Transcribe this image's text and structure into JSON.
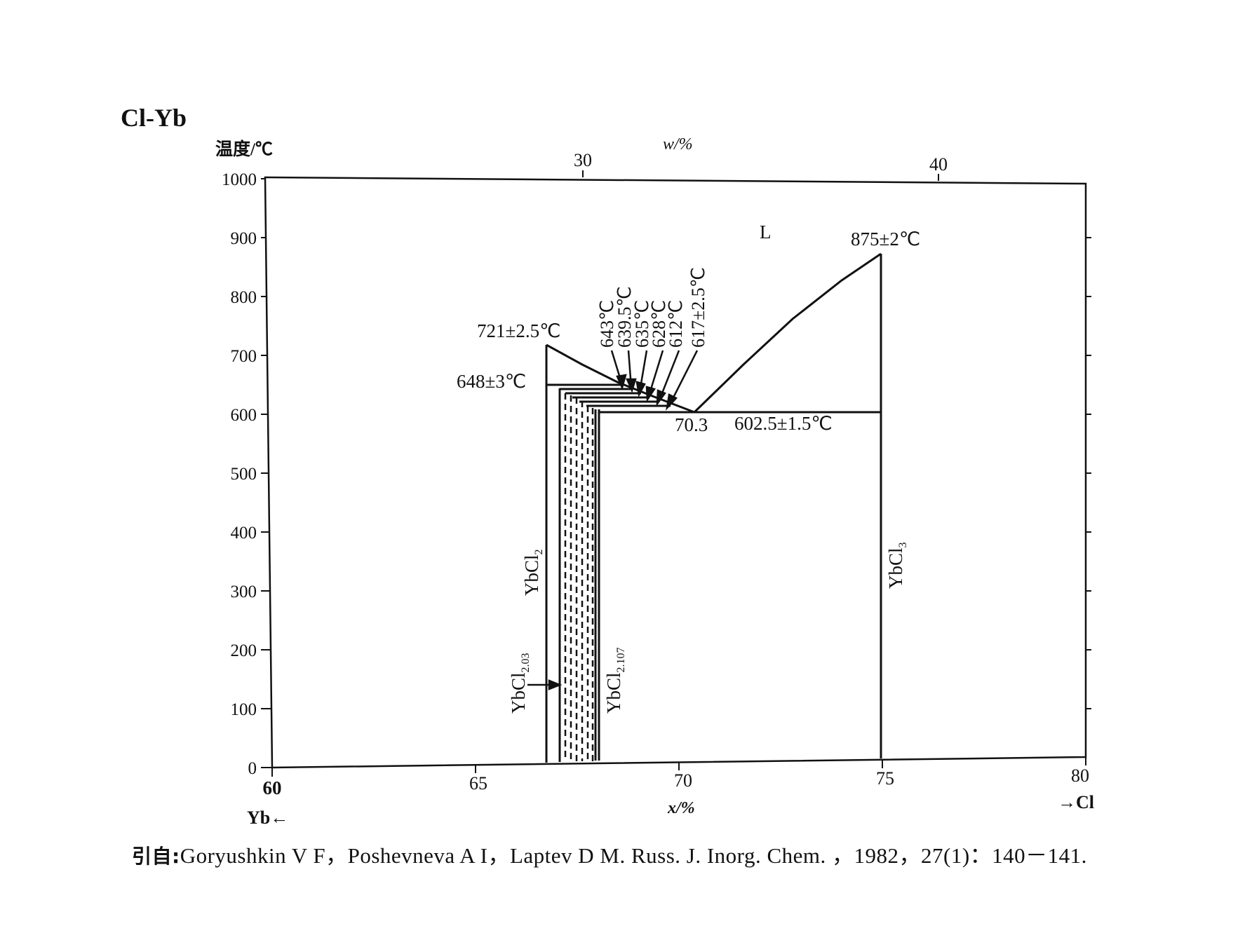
{
  "title": "Cl-Yb",
  "axes": {
    "y_label": "温度/℃",
    "x_label": "x/%",
    "top_label": "w/%",
    "left_end_label": "Yb←",
    "right_end_label": "→Cl",
    "y_ticks": [
      "0",
      "100",
      "200",
      "300",
      "400",
      "500",
      "600",
      "700",
      "800",
      "900",
      "1000"
    ],
    "x_ticks": [
      "60",
      "65",
      "70",
      "75",
      "80"
    ],
    "top_ticks": [
      "30",
      "40"
    ]
  },
  "annotations": {
    "liquid": "L",
    "peak_ybcl3": "875±2℃",
    "peak_ybcl2": "721±2.5℃",
    "peritectic_648": "648±3℃",
    "eutectic_comp": "70.3",
    "eutectic_temp": "602.5±1.5℃",
    "t643": "643℃",
    "t639": "639.5℃",
    "t635": "635℃",
    "t628": "628℃",
    "t612": "612℃",
    "t617": "617±2.5℃"
  },
  "phases": {
    "ybcl2_main": "YbCl",
    "ybcl2_sub": "2",
    "ybcl3_main": "YbCl",
    "ybcl3_sub": "3",
    "ybcl203_main": "YbCl",
    "ybcl203_sub": "2.03",
    "ybcl2107_main": "YbCl",
    "ybcl2107_sub": "2.107"
  },
  "citation": {
    "prefix": "引自:",
    "text": "Goryushkin V F，Poshevneva A I，Laptev D M.  Russ.  J.  Inorg.  Chem. ，1982，27(1)：140－141."
  },
  "chart_data": {
    "type": "phase_diagram",
    "system": "Cl-Yb",
    "x_axis": {
      "label": "x/%",
      "range": [
        60,
        80
      ]
    },
    "top_axis": {
      "label": "w/%",
      "ticks": [
        30,
        40
      ]
    },
    "y_axis": {
      "label": "温度/℃",
      "range": [
        0,
        1000
      ]
    },
    "compounds": [
      {
        "name": "YbCl2",
        "x": 66.7,
        "melting_c": 721
      },
      {
        "name": "YbCl2.03",
        "x": 67.0
      },
      {
        "name": "YbCl2.107",
        "x": 67.8
      },
      {
        "name": "YbCl3",
        "x": 75,
        "melting_c": 875
      }
    ],
    "eutectic": {
      "x": 70.3,
      "t_c": 602.5
    },
    "invariant_temps_c": [
      648,
      643,
      639.5,
      635,
      628,
      617,
      612
    ]
  }
}
